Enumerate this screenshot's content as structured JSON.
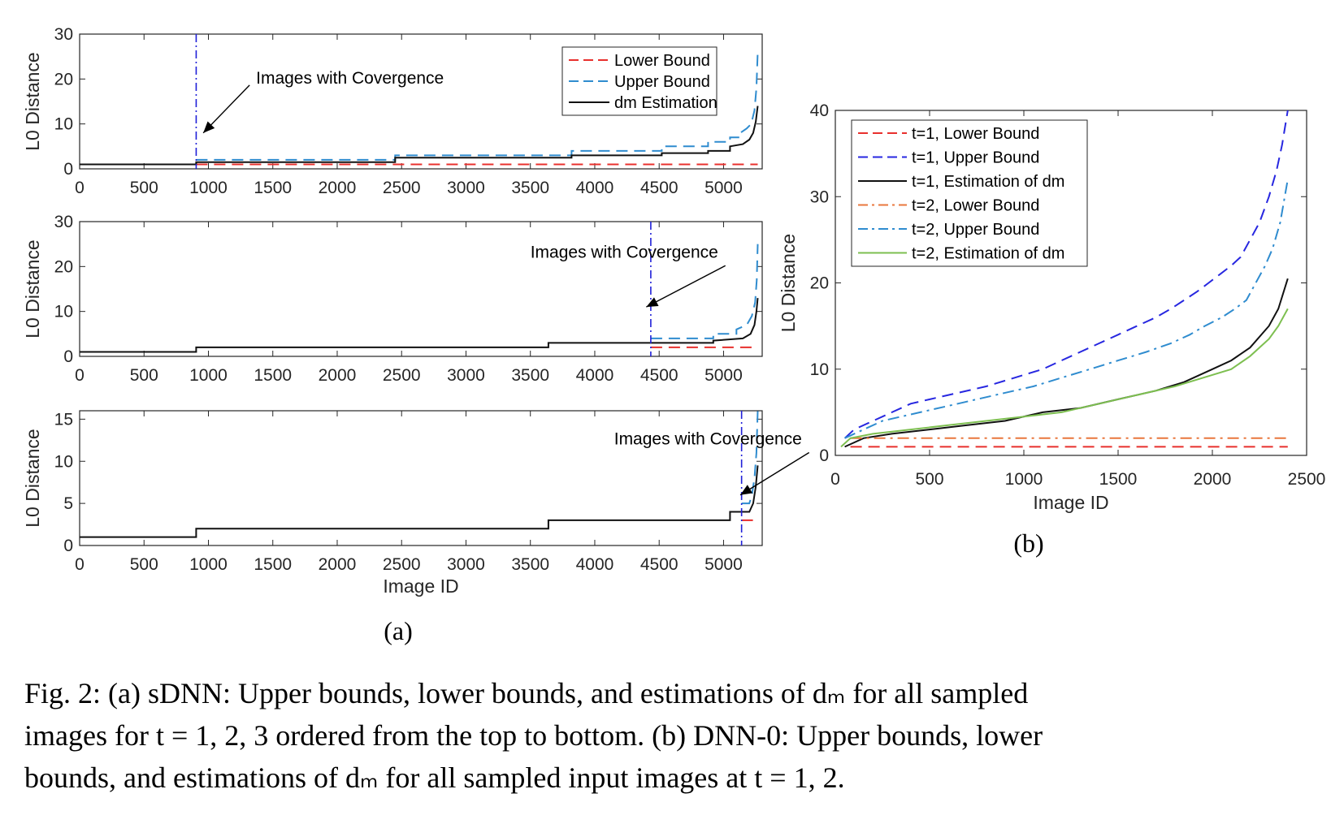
{
  "chart_data": [
    {
      "type": "line",
      "panel": "a-top",
      "xlabel": "",
      "ylabel": "L0 Distance",
      "xlim": [
        0,
        5300
      ],
      "ylim": [
        0,
        30
      ],
      "xticks": [
        0,
        500,
        1000,
        1500,
        2000,
        2500,
        3000,
        3500,
        4000,
        4500,
        5000
      ],
      "yticks": [
        0,
        10,
        20,
        30
      ],
      "legend": "top-right",
      "grid": false,
      "convergence_x": 905,
      "annotation": {
        "text": "Images with Covergence",
        "text_at": [
          1370,
          19
        ],
        "arrow_to": [
          960,
          8
        ]
      },
      "series": [
        {
          "name": "Lower Bound",
          "color": "#e8302d",
          "dash": "dashed",
          "points": [
            [
              905,
              1
            ],
            [
              5265,
              1
            ]
          ]
        },
        {
          "name": "Upper Bound",
          "color": "#2f8ccf",
          "dash": "dashed",
          "points": [
            [
              905,
              2
            ],
            [
              2450,
              2
            ],
            [
              2450,
              3
            ],
            [
              3820,
              3
            ],
            [
              3820,
              4
            ],
            [
              4520,
              4
            ],
            [
              4520,
              5
            ],
            [
              4880,
              5
            ],
            [
              4880,
              6
            ],
            [
              5050,
              6
            ],
            [
              5050,
              7
            ],
            [
              5130,
              7
            ],
            [
              5130,
              8
            ],
            [
              5180,
              9
            ],
            [
              5215,
              10
            ],
            [
              5240,
              13
            ],
            [
              5255,
              18
            ],
            [
              5265,
              26
            ]
          ]
        },
        {
          "name": "dm Estimation",
          "color": "#111111",
          "dash": "solid",
          "points": [
            [
              0,
              1
            ],
            [
              905,
              1
            ],
            [
              905,
              1.5
            ],
            [
              2450,
              1.5
            ],
            [
              2450,
              2.5
            ],
            [
              3820,
              2.5
            ],
            [
              3820,
              3
            ],
            [
              4520,
              3
            ],
            [
              4520,
              3.5
            ],
            [
              4880,
              3.5
            ],
            [
              4880,
              4
            ],
            [
              5050,
              4
            ],
            [
              5050,
              5
            ],
            [
              5150,
              5.5
            ],
            [
              5200,
              6.5
            ],
            [
              5230,
              8
            ],
            [
              5250,
              10.5
            ],
            [
              5265,
              14
            ]
          ]
        }
      ]
    },
    {
      "type": "line",
      "panel": "a-middle",
      "xlabel": "",
      "ylabel": "L0 Distance",
      "xlim": [
        0,
        5300
      ],
      "ylim": [
        0,
        30
      ],
      "xticks": [
        0,
        500,
        1000,
        1500,
        2000,
        2500,
        3000,
        3500,
        4000,
        4500,
        5000
      ],
      "yticks": [
        0,
        10,
        20,
        30
      ],
      "grid": false,
      "convergence_x": 4435,
      "annotation": {
        "text": "Images with Covergence",
        "text_at": [
          3500,
          22
        ],
        "arrow_to": [
          4400,
          11
        ]
      },
      "series": [
        {
          "name": "Lower Bound",
          "color": "#e8302d",
          "dash": "dashed",
          "points": [
            [
              4435,
              2
            ],
            [
              5265,
              2
            ]
          ]
        },
        {
          "name": "Upper Bound",
          "color": "#2f8ccf",
          "dash": "dashed",
          "points": [
            [
              4435,
              4
            ],
            [
              4920,
              4
            ],
            [
              4920,
              5
            ],
            [
              5100,
              5
            ],
            [
              5100,
              6
            ],
            [
              5180,
              7
            ],
            [
              5220,
              9
            ],
            [
              5245,
              12
            ],
            [
              5258,
              17
            ],
            [
              5265,
              25
            ]
          ]
        },
        {
          "name": "dm Estimation",
          "color": "#111111",
          "dash": "solid",
          "points": [
            [
              0,
              1
            ],
            [
              905,
              1
            ],
            [
              905,
              2
            ],
            [
              3640,
              2
            ],
            [
              3640,
              3
            ],
            [
              4920,
              3
            ],
            [
              4920,
              3.5
            ],
            [
              5150,
              4
            ],
            [
              5210,
              5
            ],
            [
              5240,
              7
            ],
            [
              5255,
              10
            ],
            [
              5265,
              13
            ]
          ]
        }
      ]
    },
    {
      "type": "line",
      "panel": "a-bottom",
      "xlabel": "Image ID",
      "ylabel": "L0 Distance",
      "xlim": [
        0,
        5300
      ],
      "ylim": [
        0,
        16
      ],
      "xticks": [
        0,
        500,
        1000,
        1500,
        2000,
        2500,
        3000,
        3500,
        4000,
        4500,
        5000
      ],
      "yticks": [
        0,
        5,
        10,
        15
      ],
      "grid": false,
      "convergence_x": 5140,
      "annotation": {
        "text": "Images with Covergence",
        "text_at": [
          4150,
          12
        ],
        "arrow_to": [
          5130,
          6
        ]
      },
      "series": [
        {
          "name": "Lower Bound",
          "color": "#e8302d",
          "dash": "dashed",
          "points": [
            [
              5140,
              3
            ],
            [
              5265,
              3
            ]
          ]
        },
        {
          "name": "Upper Bound",
          "color": "#2f8ccf",
          "dash": "dashed",
          "points": [
            [
              5140,
              5
            ],
            [
              5200,
              5
            ],
            [
              5220,
              6
            ],
            [
              5240,
              8
            ],
            [
              5255,
              11
            ],
            [
              5265,
              16
            ]
          ]
        },
        {
          "name": "dm Estimation",
          "color": "#111111",
          "dash": "solid",
          "points": [
            [
              0,
              1
            ],
            [
              905,
              1
            ],
            [
              905,
              2
            ],
            [
              3640,
              2
            ],
            [
              3640,
              3
            ],
            [
              5050,
              3
            ],
            [
              5050,
              4
            ],
            [
              5200,
              4
            ],
            [
              5230,
              5
            ],
            [
              5250,
              7
            ],
            [
              5265,
              9.5
            ]
          ]
        }
      ]
    },
    {
      "type": "line",
      "panel": "b",
      "xlabel": "Image ID",
      "ylabel": "L0 Distance",
      "xlim": [
        0,
        2500
      ],
      "ylim": [
        0,
        40
      ],
      "xticks": [
        0,
        500,
        1000,
        1500,
        2000,
        2500
      ],
      "yticks": [
        0,
        10,
        20,
        30,
        40
      ],
      "legend": "top-left",
      "grid": false,
      "series": [
        {
          "name": "t=1, Lower Bound",
          "color": "#e8302d",
          "dash": "dashed",
          "points": [
            [
              80,
              1
            ],
            [
              2400,
              1
            ]
          ]
        },
        {
          "name": "t=1, Upper Bound",
          "color": "#2727e0",
          "dash": "dashed",
          "points": [
            [
              50,
              2
            ],
            [
              100,
              3
            ],
            [
              200,
              4
            ],
            [
              300,
              5
            ],
            [
              400,
              6
            ],
            [
              600,
              7
            ],
            [
              800,
              8
            ],
            [
              950,
              9
            ],
            [
              1100,
              10
            ],
            [
              1200,
              11
            ],
            [
              1300,
              12
            ],
            [
              1400,
              13
            ],
            [
              1500,
              14
            ],
            [
              1600,
              15
            ],
            [
              1700,
              16
            ],
            [
              1780,
              17
            ],
            [
              1850,
              18
            ],
            [
              1920,
              19
            ],
            [
              1980,
              20
            ],
            [
              2040,
              21
            ],
            [
              2100,
              22
            ],
            [
              2150,
              23
            ],
            [
              2200,
              25
            ],
            [
              2250,
              27
            ],
            [
              2300,
              30
            ],
            [
              2340,
              33
            ],
            [
              2370,
              36
            ],
            [
              2400,
              40
            ]
          ]
        },
        {
          "name": "t=1, Estimation of dm",
          "color": "#111111",
          "dash": "solid",
          "points": [
            [
              50,
              1
            ],
            [
              100,
              1.5
            ],
            [
              150,
              2
            ],
            [
              300,
              2.5
            ],
            [
              500,
              3
            ],
            [
              700,
              3.5
            ],
            [
              900,
              4
            ],
            [
              1100,
              5
            ],
            [
              1300,
              5.5
            ],
            [
              1500,
              6.5
            ],
            [
              1700,
              7.5
            ],
            [
              1850,
              8.5
            ],
            [
              2000,
              10
            ],
            [
              2100,
              11
            ],
            [
              2200,
              12.5
            ],
            [
              2300,
              15
            ],
            [
              2350,
              17
            ],
            [
              2400,
              20.5
            ]
          ]
        },
        {
          "name": "t=2, Lower Bound",
          "color": "#e8773d",
          "dash": "dashdot",
          "points": [
            [
              80,
              2
            ],
            [
              2400,
              2
            ]
          ]
        },
        {
          "name": "t=2, Upper Bound",
          "color": "#2f8ccf",
          "dash": "dashdot",
          "points": [
            [
              50,
              2
            ],
            [
              150,
              3
            ],
            [
              250,
              4
            ],
            [
              450,
              5
            ],
            [
              650,
              6
            ],
            [
              850,
              7
            ],
            [
              1050,
              8
            ],
            [
              1200,
              9
            ],
            [
              1350,
              10
            ],
            [
              1500,
              11
            ],
            [
              1650,
              12
            ],
            [
              1780,
              13
            ],
            [
              1880,
              14
            ],
            [
              1960,
              15
            ],
            [
              2050,
              16
            ],
            [
              2120,
              17
            ],
            [
              2180,
              18
            ],
            [
              2230,
              20
            ],
            [
              2280,
              22
            ],
            [
              2320,
              24
            ],
            [
              2360,
              27
            ],
            [
              2400,
              32
            ]
          ]
        },
        {
          "name": "t=2,  Estimation of dm",
          "color": "#7dbf50",
          "dash": "solid",
          "points": [
            [
              30,
              1
            ],
            [
              80,
              2
            ],
            [
              200,
              2.5
            ],
            [
              400,
              3
            ],
            [
              600,
              3.5
            ],
            [
              800,
              4
            ],
            [
              1000,
              4.5
            ],
            [
              1200,
              5
            ],
            [
              1400,
              6
            ],
            [
              1600,
              7
            ],
            [
              1800,
              8
            ],
            [
              1950,
              9
            ],
            [
              2100,
              10
            ],
            [
              2200,
              11.5
            ],
            [
              2300,
              13.5
            ],
            [
              2350,
              15
            ],
            [
              2400,
              17
            ]
          ]
        }
      ]
    }
  ],
  "labels": {
    "sub_a": "(a)",
    "sub_b": "(b)"
  },
  "caption": {
    "line1": "Fig. 2: (a) sDNN: Upper bounds, lower bounds, and estimations of dₘ for all sampled",
    "line2": "images for t = 1, 2, 3 ordered from the top to bottom. (b) DNN-0: Upper bounds, lower",
    "line3": "bounds, and estimations of dₘ for all sampled input images at t = 1, 2."
  }
}
